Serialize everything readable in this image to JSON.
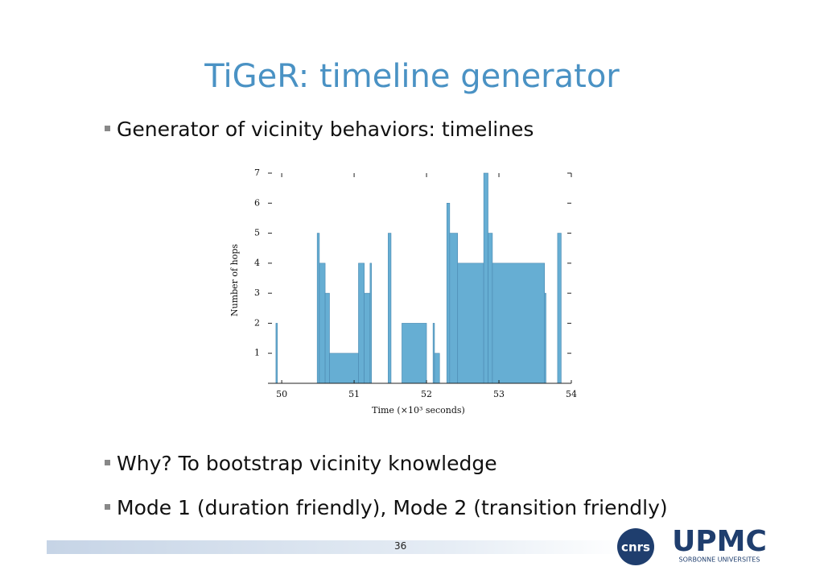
{
  "slide": {
    "title": "TiGeR: timeline generator",
    "bullets": [
      "Generator of vicinity behaviors: timelines",
      "Why? To bootstrap vicinity knowledge",
      "Mode 1 (duration friendly), Mode 2 (transition friendly)"
    ],
    "page_number": "36",
    "logos": [
      "cnrs",
      "UPMC",
      "SORBONNE UNIVERSITES"
    ]
  },
  "chart_data": {
    "type": "step-area",
    "x_label": "Time (×10³ seconds)",
    "y_label": "Number of hops",
    "x": [
      49.92,
      49.94,
      50.49,
      50.52,
      50.6,
      50.66,
      51.06,
      51.14,
      51.22,
      51.24,
      51.47,
      51.51,
      51.66,
      52.0,
      52.09,
      52.11,
      52.18,
      52.28,
      52.32,
      52.43,
      52.79,
      52.85,
      52.91,
      53.63,
      53.65,
      53.81,
      53.86,
      54
    ],
    "values": [
      2,
      0,
      5,
      4,
      3,
      1,
      4,
      3,
      4,
      0,
      5,
      0,
      2,
      0,
      2,
      1,
      0,
      6,
      5,
      4,
      7,
      5,
      4,
      3,
      0,
      5,
      0,
      0
    ],
    "color": "#66aed3",
    "xlim": [
      49.81,
      54
    ],
    "ylim": [
      0,
      7
    ],
    "xticks": [
      50,
      51,
      52,
      53,
      54
    ],
    "yticks": [
      1,
      2,
      3,
      4,
      5,
      6,
      7
    ]
  }
}
